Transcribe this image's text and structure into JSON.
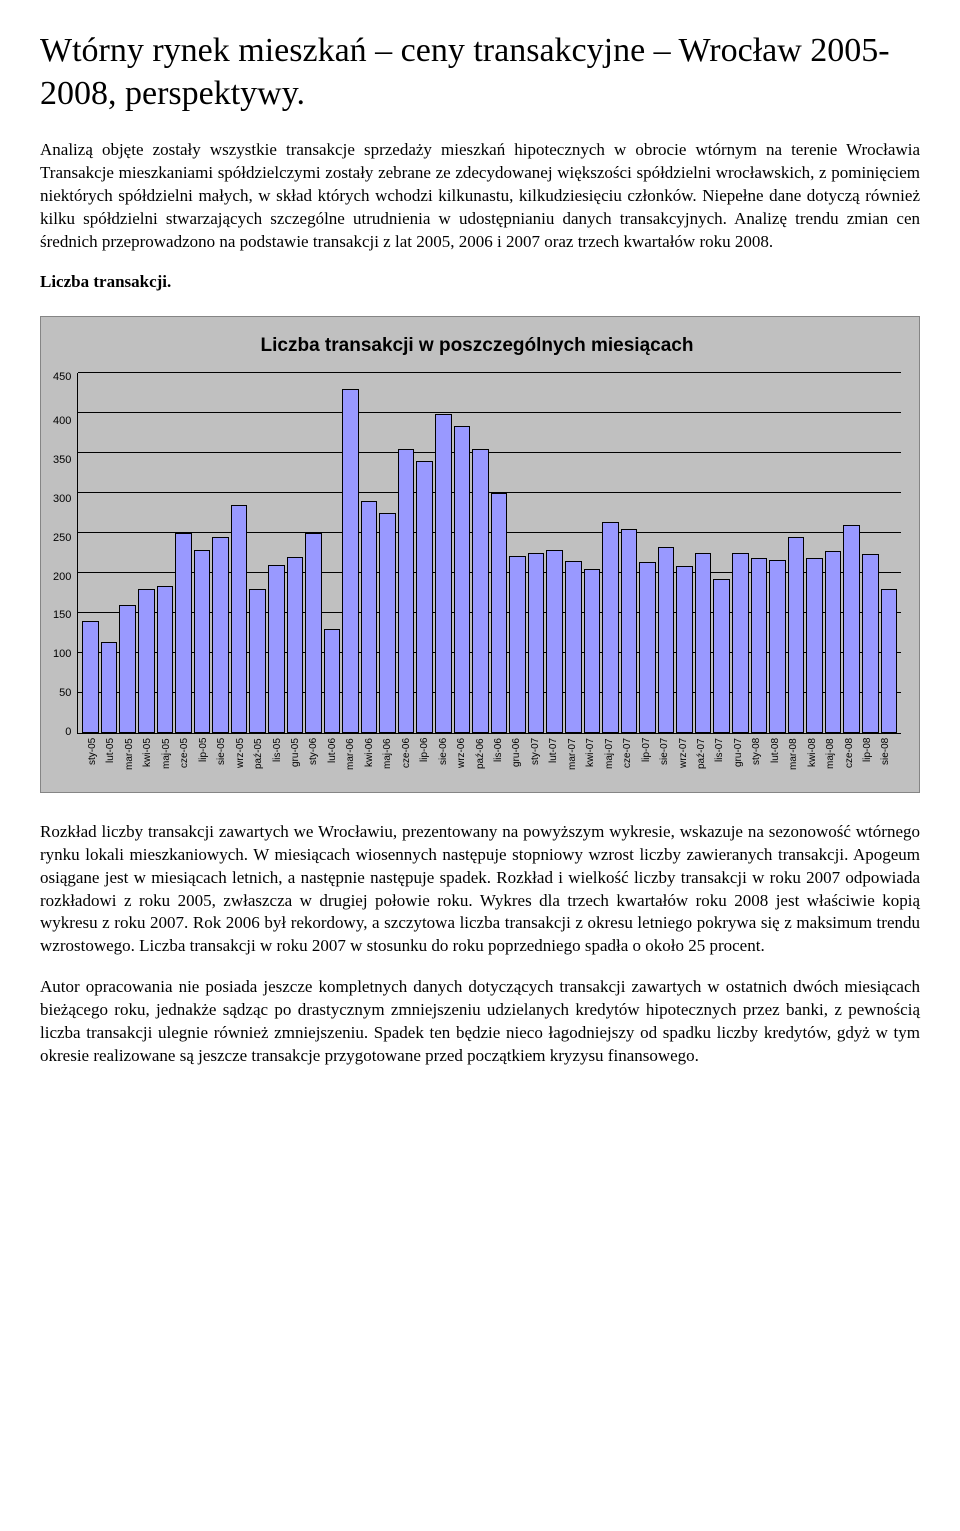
{
  "title": "Wtórny rynek mieszkań – ceny transakcyjne – Wrocław 2005-2008, perspektywy.",
  "para1": "Analizą objęte zostały wszystkie transakcje sprzedaży mieszkań  hipotecznych w obrocie wtórnym na terenie Wrocławia Transakcje mieszkaniami spółdzielczymi zostały zebrane ze zdecydowanej większości spółdzielni wrocławskich, z pominięciem niektórych spółdzielni małych, w skład których wchodzi kilkunastu, kilkudziesięciu członków. Niepełne dane dotyczą również kilku spółdzielni stwarzających szczególne utrudnienia w udostępnianiu danych transakcyjnych. Analizę trendu zmian cen średnich przeprowadzono na podstawie transakcji z lat 2005, 2006 i 2007 oraz trzech kwartałów roku 2008.",
  "heading1": "Liczba transakcji.",
  "chart": {
    "type": "bar",
    "title": "Liczba transakcji w poszczególnych miesiącach",
    "categories": [
      "sty-05",
      "lut-05",
      "mar-05",
      "kwi-05",
      "maj-05",
      "cze-05",
      "lip-05",
      "sie-05",
      "wrz-05",
      "paź-05",
      "lis-05",
      "gru-05",
      "sty-06",
      "lut-06",
      "mar-06",
      "kwi-06",
      "maj-06",
      "cze-06",
      "lip-06",
      "sie-06",
      "wrz-06",
      "paź-06",
      "lis-06",
      "gru-06",
      "sty-07",
      "lut-07",
      "mar-07",
      "kwi-07",
      "maj-07",
      "cze-07",
      "lip-07",
      "sie-07",
      "wrz-07",
      "paź-07",
      "lis-07",
      "gru-07",
      "sty-08",
      "lut-08",
      "mar-08",
      "kwi-08",
      "maj-08",
      "cze-08",
      "lip-08",
      "sie-08"
    ],
    "values": [
      140,
      113,
      160,
      180,
      183,
      250,
      228,
      245,
      285,
      180,
      210,
      220,
      250,
      130,
      430,
      290,
      275,
      355,
      340,
      398,
      383,
      355,
      300,
      221,
      225,
      228,
      215,
      205,
      264,
      255,
      214,
      232,
      208,
      225,
      192,
      225,
      218,
      216,
      245,
      218,
      227,
      260,
      224,
      180
    ],
    "ylim": [
      0,
      450
    ],
    "ytick_step": 50,
    "grid_color": "#000000",
    "background_color": "#c0c0c0",
    "bar_color": "#9999ff",
    "bar_border": "#000000",
    "title_fontsize": 19,
    "label_fontsize": 10
  },
  "para2": "Rozkład liczby transakcji zawartych we Wrocławiu, prezentowany na powyższym wykresie, wskazuje na sezonowość wtórnego rynku lokali mieszkaniowych. W miesiącach wiosennych następuje stopniowy wzrost liczby zawieranych transakcji. Apogeum osiągane jest w miesiącach letnich, a następnie następuje spadek. Rozkład i wielkość liczby transakcji w roku 2007 odpowiada rozkładowi z roku 2005, zwłaszcza w drugiej połowie roku. Wykres dla trzech kwartałów roku 2008 jest właściwie kopią wykresu z roku 2007. Rok 2006 był rekordowy, a szczytowa liczba transakcji z okresu letniego pokrywa się z maksimum trendu wzrostowego. Liczba transakcji w roku 2007 w stosunku do roku poprzedniego spadła o około 25 procent.",
  "para3": "Autor opracowania nie posiada jeszcze kompletnych danych dotyczących transakcji zawartych w ostatnich dwóch miesiącach bieżącego roku, jednakże sądząc po drastycznym zmniejszeniu udzielanych kredytów hipotecznych przez banki, z pewnością liczba transakcji ulegnie również zmniejszeniu. Spadek ten będzie nieco łagodniejszy od spadku liczby kredytów, gdyż w tym okresie realizowane są jeszcze transakcje przygotowane przed początkiem kryzysu finansowego."
}
